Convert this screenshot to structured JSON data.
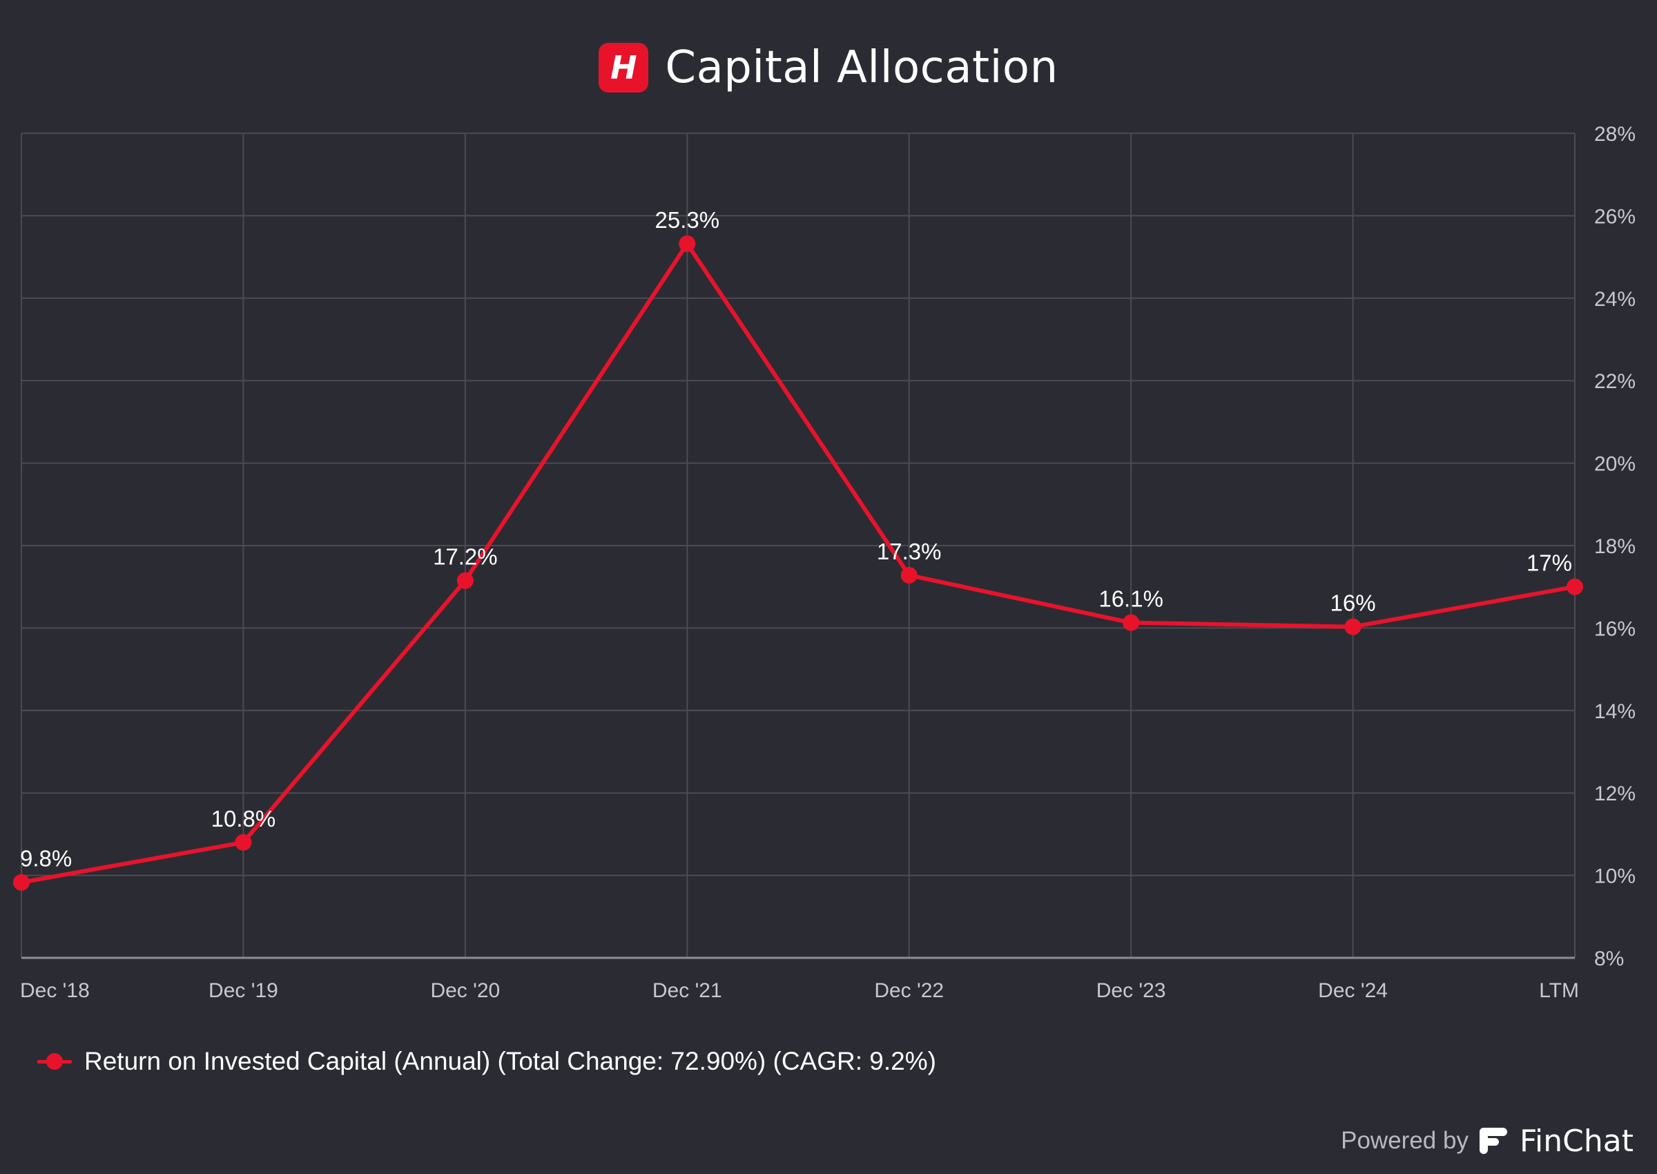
{
  "header": {
    "logo_letter": "H",
    "title": "Capital Allocation"
  },
  "chart_data": {
    "type": "line",
    "categories": [
      "Dec '18",
      "Dec '19",
      "Dec '20",
      "Dec '21",
      "Dec '22",
      "Dec '23",
      "Dec '24",
      "LTM"
    ],
    "series": [
      {
        "name": "Return on Invested Capital (Annual) (Total Change: 72.90%) (CAGR: 9.2%)",
        "values": [
          9.83,
          10.8,
          17.15,
          25.32,
          17.28,
          16.13,
          16.03,
          17.0
        ],
        "labels": [
          "9.8%",
          "10.8%",
          "17.2%",
          "25.3%",
          "17.3%",
          "16.1%",
          "16%",
          "17%"
        ],
        "color": "#e8132b"
      }
    ],
    "y_ticks": [
      "8%",
      "10%",
      "12%",
      "14%",
      "16%",
      "18%",
      "20%",
      "22%",
      "24%",
      "26%",
      "28%"
    ],
    "ylim": [
      8,
      28
    ],
    "y_axis_side": "right",
    "grid": true,
    "legend_position": "bottom-left"
  },
  "legend": {
    "label": "Return on Invested Capital (Annual) (Total Change: 72.90%) (CAGR: 9.2%)"
  },
  "footer": {
    "powered_by": "Powered by",
    "brand": "FinChat"
  },
  "colors": {
    "background": "#2b2c33",
    "series": "#e8132b",
    "grid": "#4a4b53",
    "axis_text": "#c8c9ce"
  }
}
